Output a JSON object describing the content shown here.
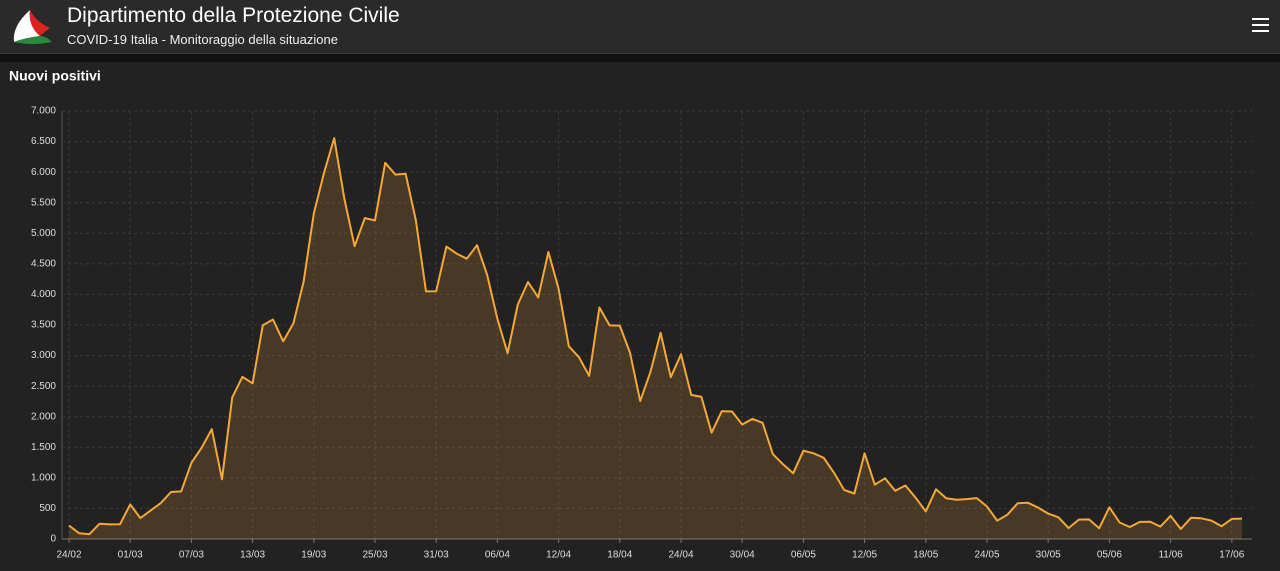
{
  "header": {
    "title": "Dipartimento della Protezione Civile",
    "subtitle": "COVID-19 Italia - Monitoraggio della situazione"
  },
  "chart_data": {
    "type": "area",
    "title": "Nuovi positivi",
    "color": "#f5a838",
    "grid": true,
    "categories": [
      "24/02",
      null,
      null,
      null,
      null,
      null,
      "01/03",
      null,
      null,
      null,
      null,
      null,
      "07/03",
      null,
      null,
      null,
      null,
      null,
      "13/03",
      null,
      null,
      null,
      null,
      null,
      "19/03",
      null,
      null,
      null,
      null,
      null,
      "25/03",
      null,
      null,
      null,
      null,
      null,
      "31/03",
      null,
      null,
      null,
      null,
      null,
      "06/04",
      null,
      null,
      null,
      null,
      null,
      "12/04",
      null,
      null,
      null,
      null,
      null,
      "18/04",
      null,
      null,
      null,
      null,
      null,
      "24/04",
      null,
      null,
      null,
      null,
      null,
      "30/04",
      null,
      null,
      null,
      null,
      null,
      "06/05",
      null,
      null,
      null,
      null,
      null,
      "12/05",
      null,
      null,
      null,
      null,
      null,
      "18/05",
      null,
      null,
      null,
      null,
      null,
      "24/05",
      null,
      null,
      null,
      null,
      null,
      "30/05",
      null,
      null,
      null,
      null,
      null,
      "05/06",
      null,
      null,
      null,
      null,
      null,
      "11/06",
      null,
      null,
      null,
      null,
      null,
      "17/06",
      null
    ],
    "values": [
      221,
      93,
      78,
      250,
      238,
      240,
      566,
      342,
      466,
      587,
      769,
      778,
      1247,
      1492,
      1797,
      977,
      2313,
      2651,
      2547,
      3497,
      3590,
      3233,
      3526,
      4207,
      5322,
      5986,
      6557,
      5560,
      4789,
      5249,
      5210,
      6153,
      5959,
      5974,
      5217,
      4050,
      4053,
      4782,
      4668,
      4585,
      4805,
      4316,
      3599,
      3039,
      3836,
      4204,
      3951,
      4694,
      4092,
      3153,
      2972,
      2667,
      3786,
      3493,
      3491,
      3047,
      2256,
      2729,
      3370,
      2646,
      3021,
      2357,
      2324,
      1739,
      2091,
      2086,
      1872,
      1965,
      1900,
      1389,
      1221,
      1075,
      1444,
      1401,
      1327,
      1083,
      802,
      744,
      1402,
      888,
      992,
      789,
      875,
      675,
      451,
      813,
      665,
      642,
      652,
      669,
      531,
      300,
      397,
      584,
      593,
      516,
      416,
      355,
      178,
      318,
      321,
      177,
      518,
      270,
      197,
      280,
      283,
      202,
      379,
      163,
      346,
      338,
      301,
      210,
      329,
      333
    ],
    "ylim": [
      0,
      7000
    ],
    "yticks": [
      0,
      500,
      {
        "value": 1000,
        "label": "1.000"
      },
      {
        "value": 1500,
        "label": "1.500"
      },
      {
        "value": 2000,
        "label": "2.000"
      },
      {
        "value": 2500,
        "label": "2.500"
      },
      {
        "value": 3000,
        "label": "3.000"
      },
      {
        "value": 3500,
        "label": "3.500"
      },
      {
        "value": 4000,
        "label": "4.000"
      },
      {
        "value": 4500,
        "label": "4.500"
      },
      {
        "value": 5000,
        "label": "5.000"
      },
      {
        "value": 5500,
        "label": "5.500"
      },
      {
        "value": 6000,
        "label": "6.000"
      },
      {
        "value": 6500,
        "label": "6.500"
      },
      {
        "value": 7000,
        "label": "7.000"
      }
    ]
  }
}
